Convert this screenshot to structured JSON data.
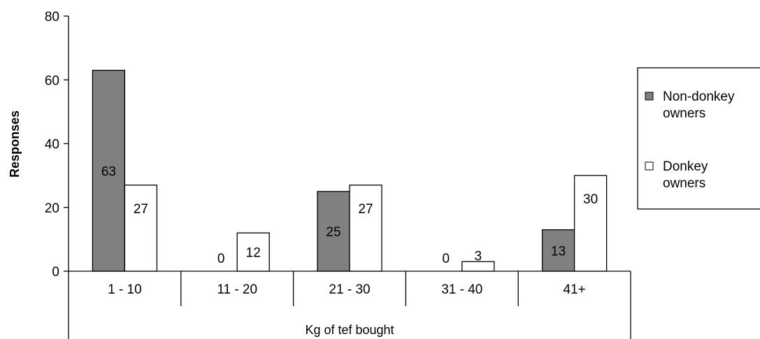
{
  "chart_data": {
    "type": "bar",
    "title": "",
    "xlabel": "Kg of tef bought",
    "ylabel": "Responses",
    "ylim": [
      0,
      80
    ],
    "yticks": [
      "0",
      "20",
      "40",
      "60",
      "80"
    ],
    "categories": [
      "1 - 10",
      "11 - 20",
      "21 - 30",
      "31 - 40",
      "41+"
    ],
    "series": [
      {
        "name": "Non-donkey owners",
        "values": [
          63,
          0,
          25,
          0,
          13
        ],
        "color": "#808080"
      },
      {
        "name": "Donkey owners",
        "values": [
          27,
          12,
          27,
          3,
          30
        ],
        "color": "#ffffff"
      }
    ],
    "legend": {
      "placement": "right",
      "items": [
        {
          "line1": "Non-donkey",
          "line2": "owners"
        },
        {
          "line1": "Donkey",
          "line2": "owners"
        }
      ]
    },
    "grid": false
  }
}
